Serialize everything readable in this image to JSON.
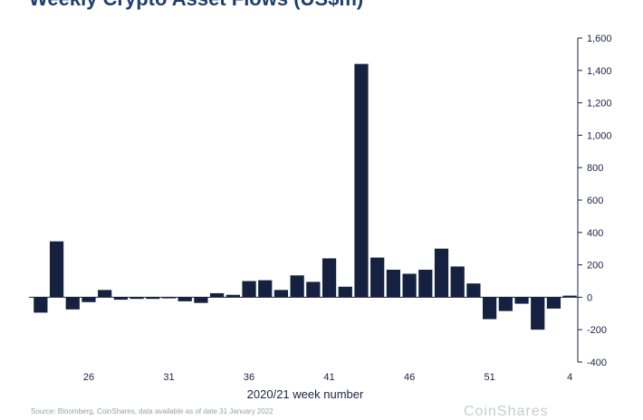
{
  "title": "Weekly Crypto Asset Flows (US$m)",
  "source": "Source: Bloomberg, CoinShares, data available as of date 31 January 2022",
  "watermark": "CoinShares",
  "colors": {
    "bar": "#16213f",
    "axis": "#1b2440",
    "title": "#1f3f6e"
  },
  "chart_data": {
    "type": "bar",
    "xlabel": "2020/21 week number",
    "ylabel": "",
    "ylim": [
      -400,
      1600
    ],
    "yticks": [
      -400,
      -200,
      0,
      200,
      400,
      600,
      800,
      1000,
      1200,
      1400,
      1600
    ],
    "ytick_labels": [
      "-400",
      "-200",
      "0",
      "200",
      "400",
      "600",
      "800",
      "1,000",
      "1,200",
      "1,400",
      "1,600"
    ],
    "xtick_labels": [
      {
        "index": 3,
        "label": "26"
      },
      {
        "index": 8,
        "label": "31"
      },
      {
        "index": 13,
        "label": "36"
      },
      {
        "index": 18,
        "label": "41"
      },
      {
        "index": 23,
        "label": "46"
      },
      {
        "index": 28,
        "label": "51"
      },
      {
        "index": 33,
        "label": "4"
      }
    ],
    "values": [
      -95,
      345,
      -75,
      -30,
      45,
      -15,
      -10,
      -10,
      -5,
      -25,
      -35,
      25,
      15,
      100,
      105,
      45,
      135,
      95,
      240,
      65,
      1440,
      245,
      170,
      145,
      170,
      300,
      190,
      85,
      -135,
      -85,
      -40,
      -200,
      -70,
      10
    ],
    "grid": false,
    "legend": "none"
  }
}
